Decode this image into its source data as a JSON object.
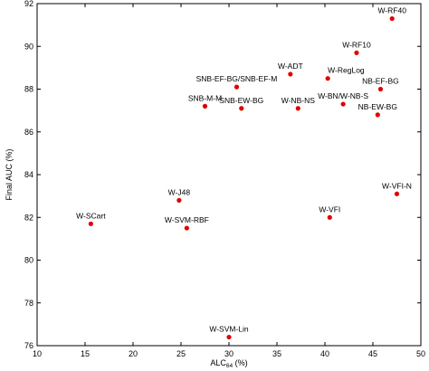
{
  "chart_data": {
    "type": "scatter",
    "xlabel": "ALC",
    "xlabel_sub": "64",
    "xlabel_unit": " (%)",
    "ylabel": "Final AUC (%)",
    "xlim": [
      10,
      50
    ],
    "ylim": [
      76,
      92
    ],
    "xticks": [
      "10",
      "15",
      "20",
      "25",
      "30",
      "35",
      "40",
      "45",
      "50"
    ],
    "yticks": [
      "76",
      "78",
      "80",
      "82",
      "84",
      "86",
      "88",
      "90",
      "92"
    ],
    "grid": false,
    "marker_color": "#e00000",
    "points": [
      {
        "label": "W-RF40",
        "x": 47.0,
        "y": 91.3,
        "anchor": "middle",
        "dy": -6
      },
      {
        "label": "W-RF10",
        "x": 43.3,
        "y": 89.7,
        "anchor": "middle",
        "dy": -6
      },
      {
        "label": "W-ADT",
        "x": 36.4,
        "y": 88.7,
        "anchor": "middle",
        "dy": -6
      },
      {
        "label": "W-RegLog",
        "x": 40.3,
        "y": 88.5,
        "anchor": "start",
        "dy": -6
      },
      {
        "label": "SNB-EF-BG/SNB-EF-M",
        "x": 30.8,
        "y": 88.1,
        "anchor": "middle",
        "dy": -6
      },
      {
        "label": "NB-EF-BG",
        "x": 45.8,
        "y": 88.0,
        "anchor": "middle",
        "dy": -6
      },
      {
        "label": "W-BN/W-NB-S",
        "x": 41.9,
        "y": 87.3,
        "anchor": "middle",
        "dy": -6
      },
      {
        "label": "SNB-M-M",
        "x": 27.5,
        "y": 87.2,
        "anchor": "middle",
        "dy": -6
      },
      {
        "label": "W-NB-NS",
        "x": 37.2,
        "y": 87.1,
        "anchor": "middle",
        "dy": -6
      },
      {
        "label": "SNB-EW-BG",
        "x": 31.3,
        "y": 87.1,
        "anchor": "middle",
        "dy": -6
      },
      {
        "label": "NB-EW-BG",
        "x": 45.5,
        "y": 86.8,
        "anchor": "middle",
        "dy": -6
      },
      {
        "label": "W-VFI-N",
        "x": 47.5,
        "y": 83.1,
        "anchor": "middle",
        "dy": -6
      },
      {
        "label": "W-J48",
        "x": 24.8,
        "y": 82.8,
        "anchor": "middle",
        "dy": -6
      },
      {
        "label": "W-VFI",
        "x": 40.5,
        "y": 82.0,
        "anchor": "middle",
        "dy": -6
      },
      {
        "label": "W-SCart",
        "x": 15.6,
        "y": 81.7,
        "anchor": "middle",
        "dy": -6
      },
      {
        "label": "W-SVM-RBF",
        "x": 25.6,
        "y": 81.5,
        "anchor": "middle",
        "dy": -6
      },
      {
        "label": "W-SVM-Lin",
        "x": 30.0,
        "y": 76.4,
        "anchor": "middle",
        "dy": -6
      }
    ]
  }
}
